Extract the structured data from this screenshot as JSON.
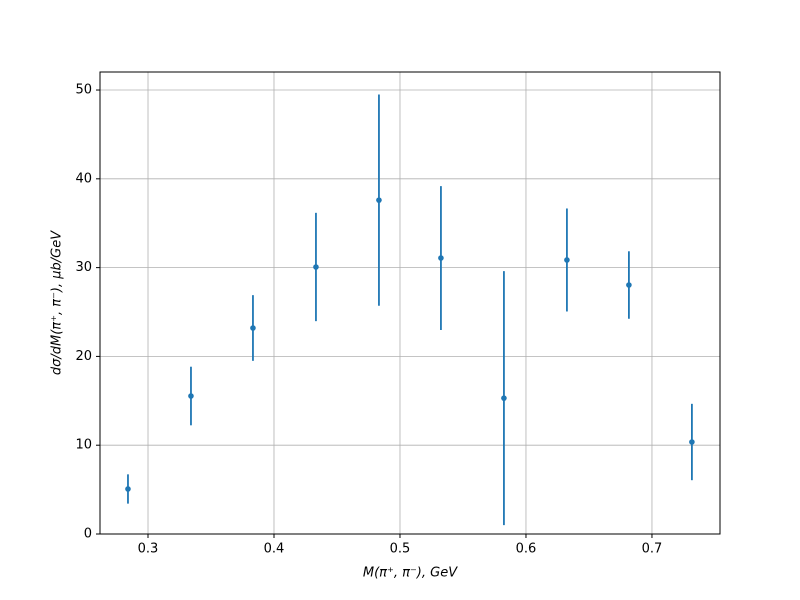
{
  "chart_data": {
    "type": "errorbar",
    "x_label": "M(π⁺, π⁻), GeV",
    "y_label": "dσ/dM(π⁺, π⁻), μb/GeV",
    "x": [
      0.2841,
      0.3341,
      0.3833,
      0.4333,
      0.4833,
      0.5325,
      0.5825,
      0.6325,
      0.6817,
      0.7317
    ],
    "values": [
      5.07,
      15.54,
      23.2,
      30.07,
      37.6,
      31.08,
      15.3,
      30.86,
      28.04,
      10.36
    ],
    "errors": [
      1.65,
      3.3,
      3.7,
      6.1,
      11.9,
      8.1,
      14.3,
      5.8,
      3.8,
      4.3
    ],
    "color": "#1f77b4",
    "xlim": [
      0.2619,
      0.754
    ],
    "ylim": [
      0,
      52.03
    ],
    "xticks": [
      0.3,
      0.4,
      0.5,
      0.6,
      0.7
    ],
    "yticks": [
      0,
      10,
      20,
      30,
      40,
      50
    ],
    "grid": true
  }
}
